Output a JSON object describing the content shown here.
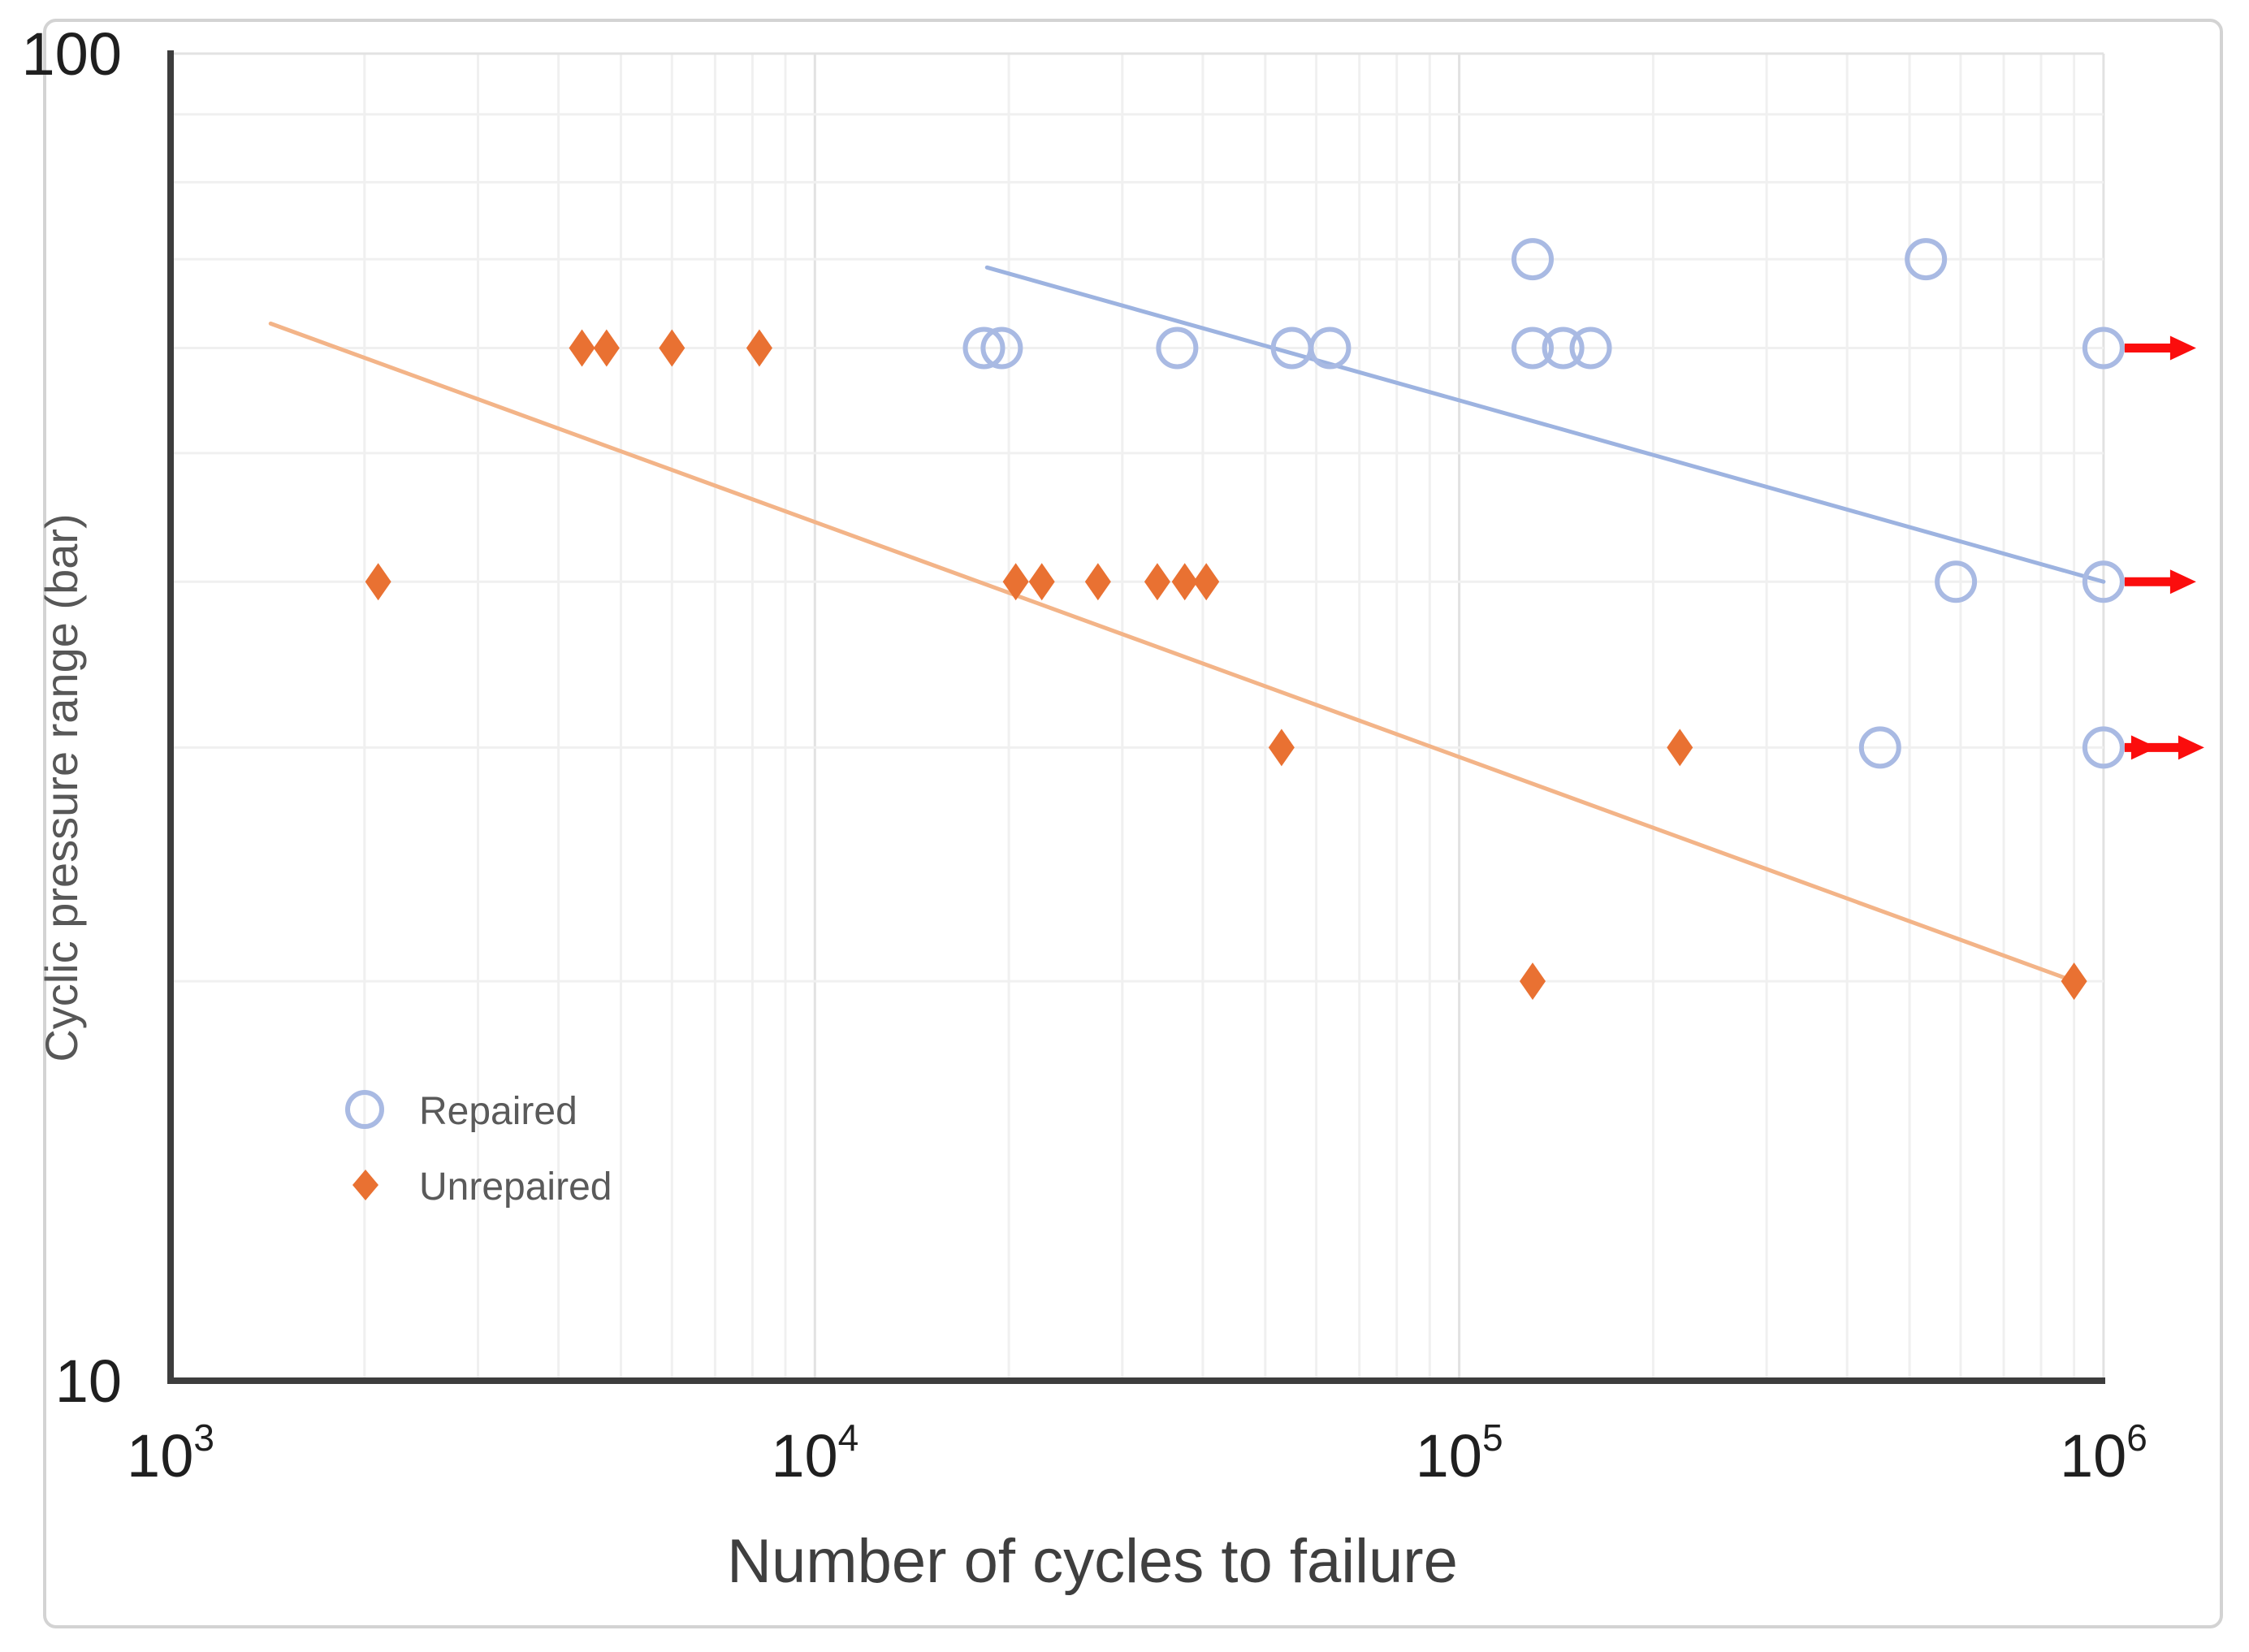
{
  "figure": {
    "xlabel": "Number of cycles to failure",
    "ylabel": "Cyclic pressure range (bar)",
    "legend": [
      {
        "label": "Repaired",
        "marker": "circle"
      },
      {
        "label": "Unrepaired",
        "marker": "diamond"
      }
    ],
    "colors": {
      "repaired_marker": "#a9bae3",
      "repaired_line": "#9db3e0",
      "unrepaired_marker": "#e97132",
      "unrepaired_line": "#f3b488",
      "runout_arrow": "#fb0d0d",
      "grid_minor": "#f0f0f0",
      "grid_major": "#e2e2e2",
      "axis_spine": "#3d3d3d",
      "frame": "#d3d3d3"
    }
  },
  "chart_data": {
    "type": "scatter",
    "x_scale": "log",
    "y_scale": "log",
    "xlim": [
      1000,
      1000000
    ],
    "ylim": [
      10,
      100
    ],
    "grid": true,
    "legend_position": "lower-left-inside",
    "x_ticks": [
      {
        "base": "10",
        "exp": "3",
        "value": 1000
      },
      {
        "base": "10",
        "exp": "4",
        "value": 10000
      },
      {
        "base": "10",
        "exp": "5",
        "value": 100000
      },
      {
        "base": "10",
        "exp": "6",
        "value": 1000000
      }
    ],
    "y_ticks": [
      {
        "label": "100",
        "value": 100
      },
      {
        "label": "10",
        "value": 10
      }
    ],
    "series": [
      {
        "name": "Repaired",
        "marker": "circle",
        "color": "#a9bae3",
        "points": [
          [
            130000,
            70
          ],
          [
            530000,
            70
          ],
          [
            18300,
            60
          ],
          [
            19500,
            60
          ],
          [
            36500,
            60
          ],
          [
            55000,
            60
          ],
          [
            63000,
            60
          ],
          [
            130000,
            60
          ],
          [
            145000,
            60
          ],
          [
            160000,
            60
          ],
          [
            1000000,
            60
          ],
          [
            590000,
            40
          ],
          [
            1000000,
            40
          ],
          [
            450000,
            30
          ],
          [
            1000000,
            30
          ]
        ],
        "runouts": [
          {
            "x": 1000000,
            "y": 60,
            "arrows": 1
          },
          {
            "x": 1000000,
            "y": 40,
            "arrows": 1
          },
          {
            "x": 1000000,
            "y": 30,
            "arrows": 2
          }
        ]
      },
      {
        "name": "Unrepaired",
        "marker": "diamond",
        "color": "#e97132",
        "points": [
          [
            4350,
            60
          ],
          [
            4750,
            60
          ],
          [
            6000,
            60
          ],
          [
            8200,
            60
          ],
          [
            2100,
            40
          ],
          [
            20500,
            40
          ],
          [
            22500,
            40
          ],
          [
            27500,
            40
          ],
          [
            34000,
            40
          ],
          [
            37500,
            40
          ],
          [
            40500,
            40
          ],
          [
            53000,
            30
          ],
          [
            220000,
            30
          ],
          [
            130000,
            20
          ],
          [
            900000,
            20
          ]
        ],
        "runouts": []
      }
    ],
    "trend_lines": [
      {
        "series": "Repaired",
        "color": "#9db3e0",
        "x1": 18500,
        "y1": 69,
        "x2": 1000000,
        "y2": 40
      },
      {
        "series": "Unrepaired",
        "color": "#f3b488",
        "x1": 1430,
        "y1": 62.6,
        "x2": 900000,
        "y2": 20
      }
    ]
  }
}
